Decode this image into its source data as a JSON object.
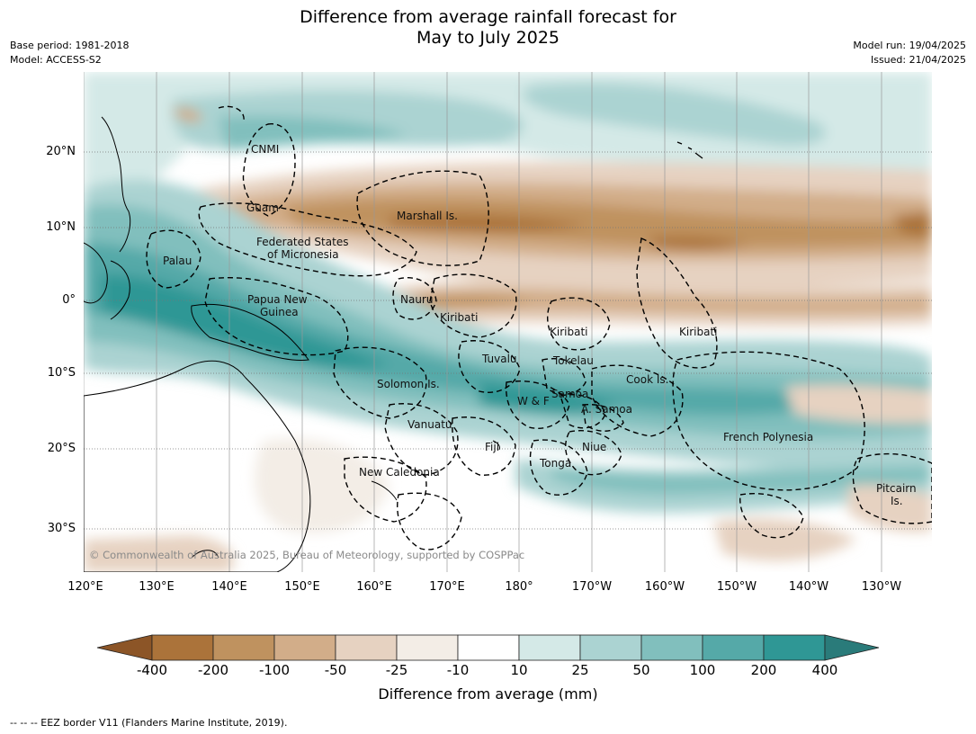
{
  "title_line1": "Difference from average rainfall forecast for",
  "title_line2": "May to July 2025",
  "meta_left": [
    "Base period: 1981-2018",
    "Model: ACCESS-S2"
  ],
  "meta_right": [
    "Model run: 19/04/2025",
    "Issued: 21/04/2025"
  ],
  "map": {
    "lat_ticks": [
      "20°N",
      "10°N",
      "0°",
      "10°S",
      "20°S",
      "30°S"
    ],
    "lon_ticks": [
      "120°E",
      "130°E",
      "140°E",
      "150°E",
      "160°E",
      "170°E",
      "180°",
      "170°W",
      "160°W",
      "150°W",
      "140°W",
      "130°W"
    ],
    "labels": {
      "cnmi": "CNMI",
      "guam": "Guam",
      "marshall": "Marshall Is.",
      "fsm1": "Federated States",
      "fsm2": "of Micronesia",
      "palau": "Palau",
      "png1": "Papua New",
      "png2": "Guinea",
      "nauru": "Nauru",
      "kiribati_w": "Kiribati",
      "kiribati_c": "Kiribati",
      "kiribati_e": "Kiribati",
      "tuvalu": "Tuvalu",
      "tokelau": "Tokelau",
      "solomon": "Solomon Is.",
      "cook": "Cook Is.",
      "samoa": "Samoa",
      "wf": "W & F",
      "asamoa": "A. Samoa",
      "vanuatu": "Vanuatu",
      "fiji": "Fiji",
      "niue": "Niue",
      "tonga": "Tonga",
      "french_polynesia": "French Polynesia",
      "new_caledonia": "New Caledonia",
      "pitcairn1": "Pitcairn",
      "pitcairn2": "Is."
    },
    "copyright": "© Commonwealth of Australia 2025, Bureau of Meteorology, supported by COSPPac"
  },
  "colorbar": {
    "title": "Difference from average (mm)",
    "ticks": [
      "-400",
      "-200",
      "-100",
      "-50",
      "-25",
      "-10",
      "10",
      "25",
      "50",
      "100",
      "200",
      "400"
    ],
    "colors": [
      "#8c5527",
      "#ab733a",
      "#bf925f",
      "#d2ad89",
      "#e6d2c1",
      "#f3ede6",
      "#ffffff",
      "#d4e9e7",
      "#abd3d2",
      "#81bfbd",
      "#55a9a8",
      "#2f9795",
      "#2a7b7a"
    ]
  },
  "footer": "--  --  -- EEZ border V11 (Flanders Marine Institute, 2019)."
}
